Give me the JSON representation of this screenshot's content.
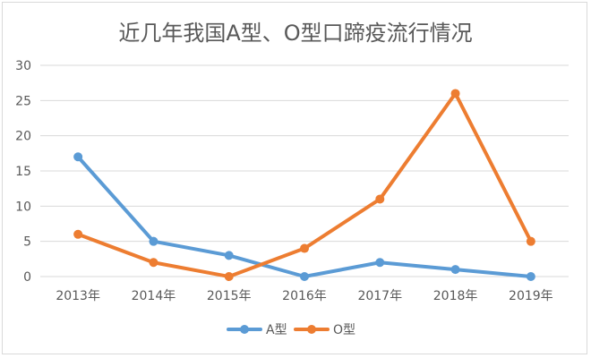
{
  "chart_data": {
    "type": "line",
    "title": "近几年我国A型、O型口蹄疫流行情况",
    "xlabel": "",
    "ylabel": "",
    "categories": [
      "2013年",
      "2014年",
      "2015年",
      "2016年",
      "2017年",
      "2018年",
      "2019年"
    ],
    "series": [
      {
        "name": "A型",
        "color": "#5B9BD5",
        "values": [
          17,
          5,
          3,
          0,
          2,
          1,
          0
        ]
      },
      {
        "name": "O型",
        "color": "#ED7D31",
        "values": [
          6,
          2,
          0,
          4,
          11,
          26,
          5
        ]
      }
    ],
    "ylim": [
      0,
      30
    ],
    "yticks": [
      "0",
      "5",
      "10",
      "15",
      "20",
      "25",
      "30"
    ],
    "grid": true,
    "legend": "bottom",
    "grid_color": "#d9d9d9"
  }
}
